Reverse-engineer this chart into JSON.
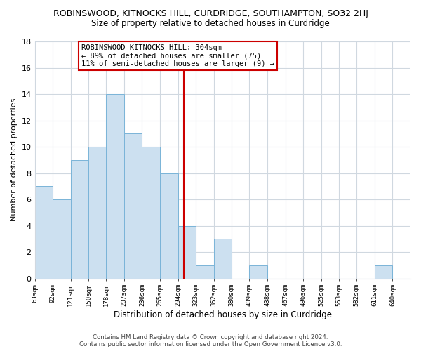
{
  "title": "ROBINSWOOD, KITNOCKS HILL, CURDRIDGE, SOUTHAMPTON, SO32 2HJ",
  "subtitle": "Size of property relative to detached houses in Curdridge",
  "xlabel": "Distribution of detached houses by size in Curdridge",
  "ylabel": "Number of detached properties",
  "bin_labels": [
    "63sqm",
    "92sqm",
    "121sqm",
    "150sqm",
    "178sqm",
    "207sqm",
    "236sqm",
    "265sqm",
    "294sqm",
    "323sqm",
    "352sqm",
    "380sqm",
    "409sqm",
    "438sqm",
    "467sqm",
    "496sqm",
    "525sqm",
    "553sqm",
    "582sqm",
    "611sqm",
    "640sqm"
  ],
  "bin_edges": [
    63,
    92,
    121,
    150,
    178,
    207,
    236,
    265,
    294,
    323,
    352,
    380,
    409,
    438,
    467,
    496,
    525,
    553,
    582,
    611,
    640
  ],
  "counts": [
    7,
    6,
    9,
    10,
    14,
    11,
    10,
    8,
    4,
    1,
    3,
    0,
    1,
    0,
    0,
    0,
    0,
    0,
    0,
    1,
    0
  ],
  "bar_color": "#cce0f0",
  "bar_edge_color": "#7ab4d8",
  "vline_x": 304,
  "vline_color": "#cc0000",
  "annotation_text": "ROBINSWOOD KITNOCKS HILL: 304sqm\n← 89% of detached houses are smaller (75)\n11% of semi-detached houses are larger (9) →",
  "annotation_box_color": "#ffffff",
  "annotation_box_edge_color": "#cc0000",
  "ylim": [
    0,
    18
  ],
  "yticks": [
    0,
    2,
    4,
    6,
    8,
    10,
    12,
    14,
    16,
    18
  ],
  "grid_color": "#d0d8e0",
  "footnote": "Contains HM Land Registry data © Crown copyright and database right 2024.\nContains public sector information licensed under the Open Government Licence v3.0.",
  "bg_color": "#ffffff",
  "title_fontsize": 9,
  "subtitle_fontsize": 8.5,
  "xlabel_fontsize": 8.5,
  "ylabel_fontsize": 8,
  "annotation_fontsize": 7.5
}
